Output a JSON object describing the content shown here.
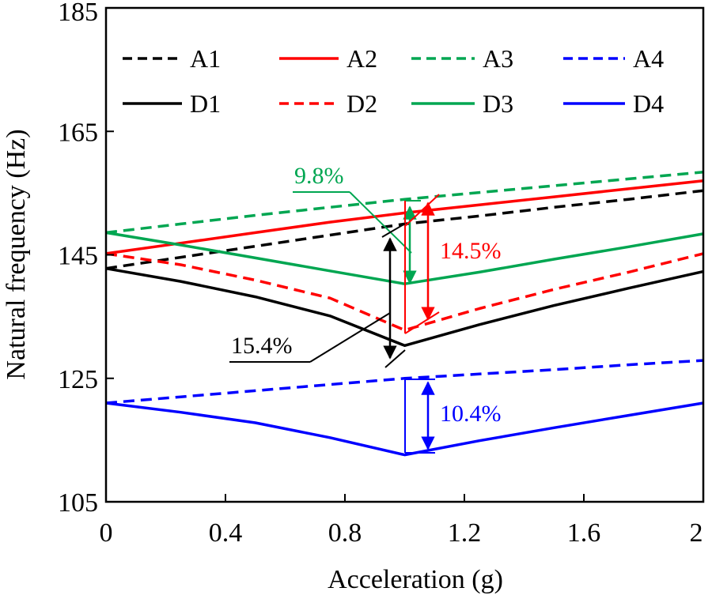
{
  "chart_data": {
    "type": "line",
    "xlabel": "Acceleration (g)",
    "ylabel": "Natural frequency (Hz)",
    "xlim": [
      0,
      2
    ],
    "ylim": [
      105,
      185
    ],
    "xticks": [
      0,
      0.4,
      0.8,
      1.2,
      1.6,
      2
    ],
    "xtick_labels": [
      "0",
      "0.4",
      "0.8",
      "1.2",
      "1.6",
      "2"
    ],
    "yticks": [
      105,
      125,
      145,
      165,
      185
    ],
    "ytick_labels": [
      "105",
      "125",
      "145",
      "165",
      "185"
    ],
    "grid": false,
    "legend_position": "top",
    "series": [
      {
        "name": "A1",
        "color": "#000000",
        "dash": true,
        "x": [
          0,
          0.25,
          0.5,
          0.75,
          1.0,
          1.25,
          1.5,
          1.75,
          2.0
        ],
        "y": [
          142.8,
          144.6,
          146.4,
          148.2,
          150.0,
          151.3,
          152.7,
          154.0,
          155.4
        ]
      },
      {
        "name": "A2",
        "color": "#ff0000",
        "dash": false,
        "x": [
          0,
          0.25,
          0.5,
          0.75,
          1.0,
          1.25,
          1.5,
          1.75,
          2.0
        ],
        "y": [
          145.2,
          146.9,
          148.6,
          150.3,
          151.8,
          153.1,
          154.4,
          155.7,
          157.0
        ]
      },
      {
        "name": "A3",
        "color": "#00a651",
        "dash": true,
        "x": [
          0,
          0.25,
          0.5,
          0.75,
          1.0,
          1.25,
          1.5,
          1.75,
          2.0
        ],
        "y": [
          148.6,
          150.0,
          151.4,
          152.7,
          154.0,
          155.1,
          156.2,
          157.3,
          158.4
        ]
      },
      {
        "name": "A4",
        "color": "#0000ff",
        "dash": true,
        "x": [
          0,
          0.25,
          0.5,
          0.75,
          1.0,
          1.25,
          1.5,
          1.75,
          2.0
        ],
        "y": [
          121.0,
          122.0,
          123.0,
          124.0,
          125.0,
          125.7,
          126.4,
          127.2,
          127.9
        ]
      },
      {
        "name": "D1",
        "color": "#000000",
        "dash": false,
        "x": [
          0,
          0.25,
          0.5,
          0.75,
          1.0,
          1.25,
          1.5,
          1.75,
          2.0
        ],
        "y": [
          142.8,
          140.7,
          138.2,
          135.1,
          130.3,
          133.7,
          136.8,
          139.6,
          142.3
        ]
      },
      {
        "name": "D2",
        "color": "#ff0000",
        "dash": true,
        "x": [
          0,
          0.25,
          0.5,
          0.75,
          1.0,
          1.25,
          1.5,
          1.75,
          2.0
        ],
        "y": [
          145.2,
          143.4,
          140.9,
          138.0,
          132.8,
          136.3,
          139.4,
          142.2,
          145.2
        ]
      },
      {
        "name": "D3",
        "color": "#00a651",
        "dash": false,
        "x": [
          0,
          0.25,
          0.5,
          0.75,
          1.0,
          1.25,
          1.5,
          1.75,
          2.0
        ],
        "y": [
          148.6,
          146.6,
          144.5,
          142.4,
          140.3,
          142.2,
          144.3,
          146.3,
          148.4
        ]
      },
      {
        "name": "D4",
        "color": "#0000ff",
        "dash": false,
        "x": [
          0,
          0.25,
          0.5,
          0.75,
          1.0,
          1.25,
          1.5,
          1.75,
          2.0
        ],
        "y": [
          121.0,
          119.5,
          117.8,
          115.4,
          112.6,
          114.9,
          117.0,
          119.0,
          121.0
        ]
      }
    ],
    "annotations": [
      {
        "text": "9.8%",
        "color": "#00a651"
      },
      {
        "text": "14.5%",
        "color": "#ff0000"
      },
      {
        "text": "15.4%",
        "color": "#000000"
      },
      {
        "text": "10.4%",
        "color": "#0000ff"
      }
    ]
  }
}
